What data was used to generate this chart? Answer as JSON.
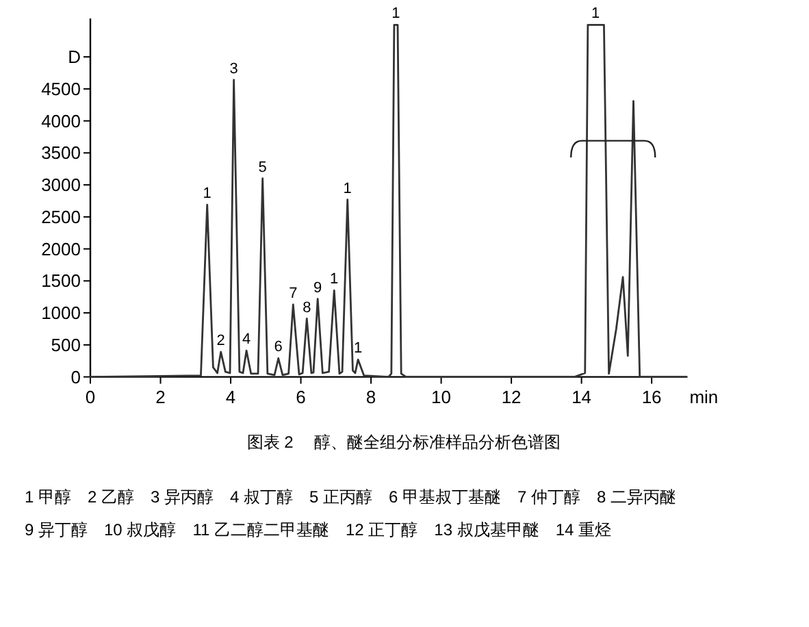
{
  "chart_data": {
    "type": "line",
    "title": "图表 2　 醇、醚全组分标准样品分析色谱图",
    "xlabel": "min",
    "xlim": [
      0,
      17
    ],
    "ylim": [
      0,
      5600
    ],
    "xticks": [
      0,
      2,
      4,
      6,
      8,
      10,
      12,
      14,
      16
    ],
    "yticks": [
      0,
      500,
      1000,
      1500,
      2000,
      2500,
      3000,
      3500,
      4000,
      4500,
      {
        "value": 5000,
        "label": "D"
      }
    ],
    "series": [
      {
        "color": "#333333",
        "x": [
          0,
          3.15,
          3.33,
          3.5,
          3.62,
          3.72,
          3.85,
          3.98,
          4.09,
          4.25,
          4.35,
          4.45,
          4.58,
          4.78,
          4.91,
          5.05,
          5.25,
          5.36,
          5.48,
          5.65,
          5.78,
          5.95,
          6.05,
          6.17,
          6.3,
          6.36,
          6.48,
          6.62,
          6.8,
          6.95,
          7.1,
          7.18,
          7.33,
          7.48,
          7.55,
          7.63,
          7.8,
          8.5,
          8.58,
          8.66,
          8.76,
          8.86,
          9.0,
          13.8,
          14.1,
          14.18,
          14.64,
          14.78,
          14.99,
          15.18,
          15.32,
          15.48,
          15.66,
          17
        ],
        "values": [
          0,
          20,
          2690,
          150,
          60,
          390,
          80,
          60,
          4640,
          80,
          60,
          410,
          50,
          50,
          3100,
          50,
          30,
          290,
          30,
          50,
          1130,
          40,
          60,
          910,
          60,
          70,
          1220,
          60,
          80,
          1350,
          50,
          80,
          2770,
          100,
          60,
          270,
          20,
          0,
          50,
          5500,
          5500,
          50,
          0,
          0,
          60,
          5500,
          5500,
          50,
          750,
          1560,
          330,
          4310,
          0,
          0
        ]
      }
    ],
    "annotations": [
      {
        "text": "1",
        "x": 3.33,
        "y": 2690
      },
      {
        "text": "2",
        "x": 3.72,
        "y": 390
      },
      {
        "text": "3",
        "x": 4.09,
        "y": 4640
      },
      {
        "text": "4",
        "x": 4.45,
        "y": 410
      },
      {
        "text": "5",
        "x": 4.91,
        "y": 3100
      },
      {
        "text": "6",
        "x": 5.36,
        "y": 290
      },
      {
        "text": "7",
        "x": 5.78,
        "y": 1125
      },
      {
        "text": "8",
        "x": 6.17,
        "y": 910
      },
      {
        "text": "9",
        "x": 6.48,
        "y": 1220
      },
      {
        "text": "1",
        "x": 6.95,
        "y": 1350
      },
      {
        "text": "1",
        "x": 7.33,
        "y": 2770
      },
      {
        "text": "1",
        "x": 7.63,
        "y": 270
      },
      {
        "text": "1",
        "x": 8.71,
        "y": 5500
      },
      {
        "text": "1",
        "x": 14.4,
        "y": 5500
      },
      "1 甲醇　2 乙醇　3 异丙醇　4 叔丁醇　5 正丙醇　6 甲基叔丁基醚　7 仲丁醇　8 二异丙醚",
      "9 异丁醇　10 叔戊醇　11 乙二醇二甲基醚　12 正丁醇　13 叔戊基甲醚　14 重烃"
    ]
  }
}
